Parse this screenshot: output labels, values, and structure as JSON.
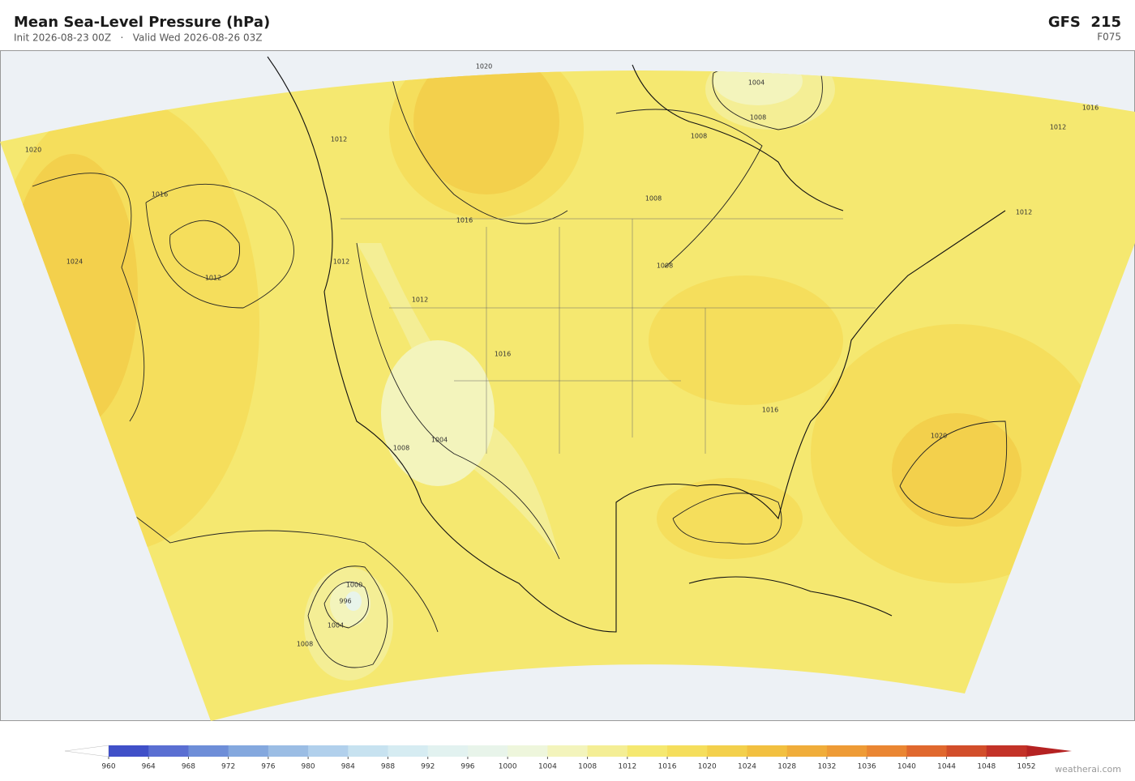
{
  "header": {
    "title": "Mean Sea-Level Pressure  (hPa)",
    "subtitle": "Init 2026-08-23 00Z   ·   Valid Wed 2026-08-26 03Z",
    "model": "GFS  215",
    "forecast_hour": "F075"
  },
  "map": {
    "contour_labels": [
      1020,
      1004,
      1008,
      1016,
      1012,
      1020,
      1016,
      1012,
      1008,
      1008,
      1016,
      1024,
      1012,
      1012,
      1012,
      1008,
      1016,
      1012,
      1004,
      1008,
      1016,
      1020,
      1000,
      996,
      1004,
      1008
    ]
  },
  "colorbar": {
    "ticks": [
      960,
      964,
      968,
      972,
      976,
      980,
      984,
      988,
      992,
      996,
      1000,
      1004,
      1008,
      1012,
      1016,
      1020,
      1024,
      1028,
      1032,
      1036,
      1040,
      1044,
      1048,
      1052
    ],
    "colors": [
      "#4050c8",
      "#5a6fd2",
      "#6e8ed8",
      "#84a8de",
      "#9bbde4",
      "#b1d0ec",
      "#c7e2f0",
      "#d6ecf2",
      "#e2f2f0",
      "#e8f4ea",
      "#eef6dc",
      "#f3f4bc",
      "#f4ee95",
      "#f5e870",
      "#f5de5c",
      "#f3d04c",
      "#f2c040",
      "#f0ad3a",
      "#ee9b36",
      "#ea8632",
      "#e0682e",
      "#d24e2a",
      "#c33228"
    ],
    "under_color": "#ffffff",
    "over_color": "#b52222"
  },
  "footer": {
    "watermark": "weatherai.com"
  }
}
